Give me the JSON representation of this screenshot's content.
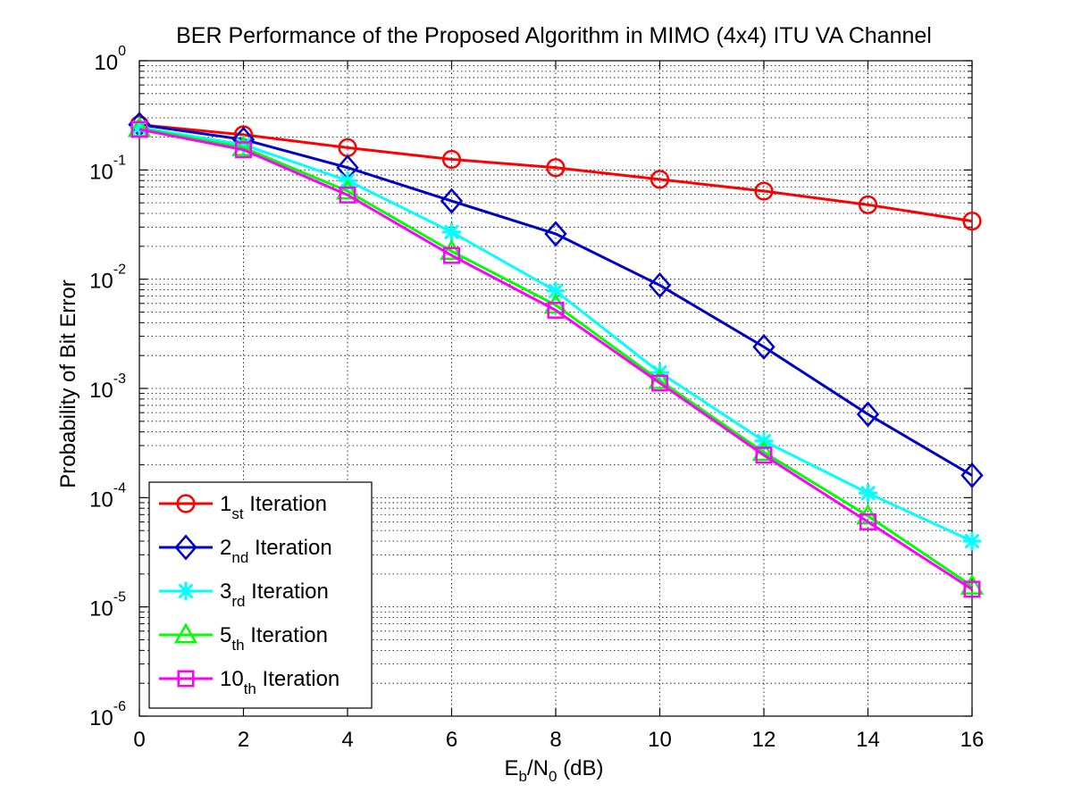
{
  "chart_data": {
    "type": "line",
    "title": "BER Performance of the Proposed Algorithm in MIMO (4x4) ITU VA Channel",
    "xlabel": {
      "base": "E",
      "sub1": "b",
      "mid": "/N",
      "sub2": "0",
      "tail": " (dB)"
    },
    "ylabel": "Probability of Bit Error",
    "xlim": [
      0,
      16
    ],
    "ylim": [
      1e-06,
      1
    ],
    "yscale": "log",
    "grid": true,
    "legend_position": "bottom-left",
    "x_ticks": [
      "0",
      "2",
      "4",
      "6",
      "8",
      "10",
      "12",
      "14",
      "16"
    ],
    "y_ticks": [
      {
        "base": "10",
        "exp": "0"
      },
      {
        "base": "10",
        "exp": "-1"
      },
      {
        "base": "10",
        "exp": "-2"
      },
      {
        "base": "10",
        "exp": "-3"
      },
      {
        "base": "10",
        "exp": "-4"
      },
      {
        "base": "10",
        "exp": "-5"
      },
      {
        "base": "10",
        "exp": "-6"
      }
    ],
    "x": [
      0,
      2,
      4,
      6,
      8,
      10,
      12,
      14,
      16
    ],
    "series": [
      {
        "num": "1",
        "suffix": "st",
        "label": " Iteration",
        "color": "#ff0000",
        "marker": "circle",
        "values": [
          0.26,
          0.21,
          0.16,
          0.125,
          0.105,
          0.082,
          0.064,
          0.048,
          0.034
        ]
      },
      {
        "num": "2",
        "suffix": "nd",
        "label": " Iteration",
        "color": "#0000cc",
        "marker": "diamond",
        "values": [
          0.26,
          0.19,
          0.105,
          0.052,
          0.026,
          0.0088,
          0.0024,
          0.00058,
          0.00016
        ]
      },
      {
        "num": "3",
        "suffix": "rd",
        "label": " Iteration",
        "color": "#00ffff",
        "marker": "asterisk",
        "values": [
          0.245,
          0.17,
          0.08,
          0.027,
          0.0078,
          0.0014,
          0.00033,
          0.00011,
          4e-05
        ]
      },
      {
        "num": "5",
        "suffix": "th",
        "label": " Iteration",
        "color": "#00ff00",
        "marker": "triangle",
        "values": [
          0.24,
          0.16,
          0.064,
          0.018,
          0.0058,
          0.00118,
          0.00026,
          6.8e-05,
          1.55e-05
        ]
      },
      {
        "num": "10",
        "suffix": "th",
        "label": " Iteration",
        "color": "#ff00ff",
        "marker": "square",
        "values": [
          0.235,
          0.153,
          0.059,
          0.0165,
          0.0052,
          0.00112,
          0.000245,
          6e-05,
          1.45e-05
        ]
      }
    ]
  }
}
